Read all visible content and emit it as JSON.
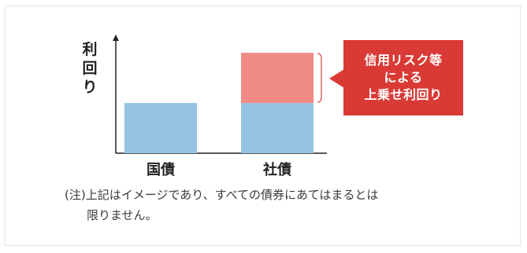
{
  "chart_data": {
    "type": "bar",
    "stacked": true,
    "categories": [
      "国債",
      "社債"
    ],
    "series": [
      {
        "values": [
          1,
          1
        ],
        "color": "#94c4e2"
      },
      {
        "values": [
          0,
          1
        ],
        "color": "#f08a86"
      }
    ],
    "ylabel": "利回り",
    "ylim": [
      0,
      2.3
    ],
    "grid": false
  },
  "callout": {
    "lines": [
      "信用リスク等",
      "による",
      "上乗せ利回り"
    ],
    "color": "#d93a35",
    "text_color": "#ffffff"
  },
  "note": {
    "line1": "(注)上記はイメージであり、すべての債券にあてはまるとは",
    "line2": "限りません。"
  }
}
